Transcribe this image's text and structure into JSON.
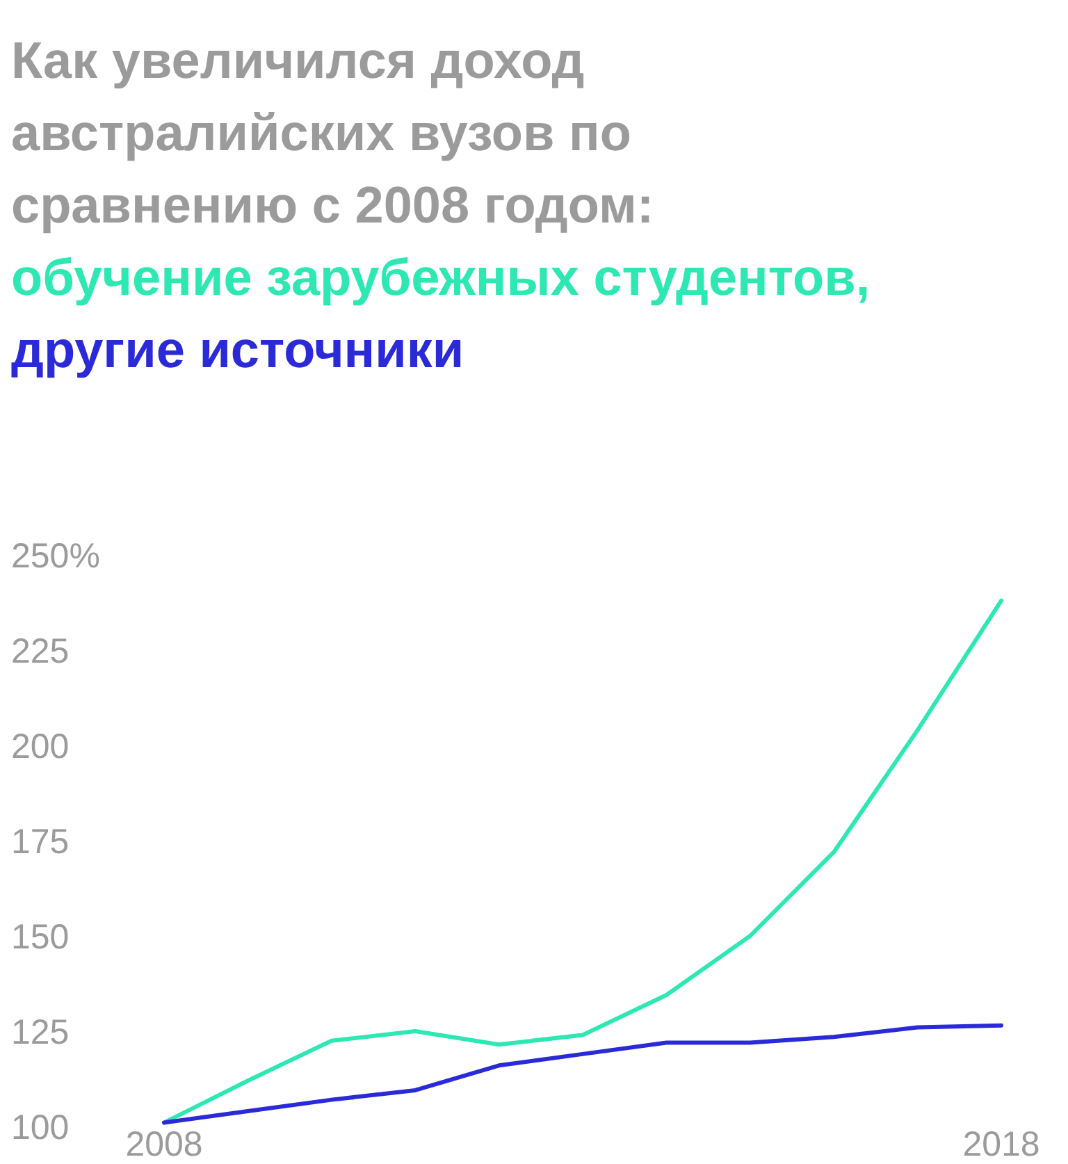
{
  "chart_data": {
    "type": "line",
    "title": "Как увеличился доход австралийских вузов по сравнению с 2008 годом:",
    "x": [
      2008,
      2009,
      2010,
      2011,
      2012,
      2013,
      2014,
      2015,
      2016,
      2017,
      2018
    ],
    "series": [
      {
        "name": "обучение зарубежных студентов,",
        "color": "#2ee8b4",
        "values": [
          101,
          112,
          122.5,
          125,
          121.5,
          124,
          134.5,
          150,
          172,
          204,
          238
        ]
      },
      {
        "name": "другие источники",
        "color": "#2a2ad8",
        "values": [
          101,
          104,
          107,
          109.5,
          116,
          119,
          122,
          122,
          123.5,
          126,
          126.5
        ]
      }
    ],
    "xlim": [
      2008,
      2018
    ],
    "xticks": [
      2008,
      2018
    ],
    "ylim": [
      100,
      250
    ],
    "yticks": [
      100,
      125,
      150,
      175,
      200,
      225,
      {
        "value": 250,
        "label": "250%"
      }
    ],
    "grid": false,
    "legend": "top",
    "marker": "none",
    "line_style": "solid"
  }
}
